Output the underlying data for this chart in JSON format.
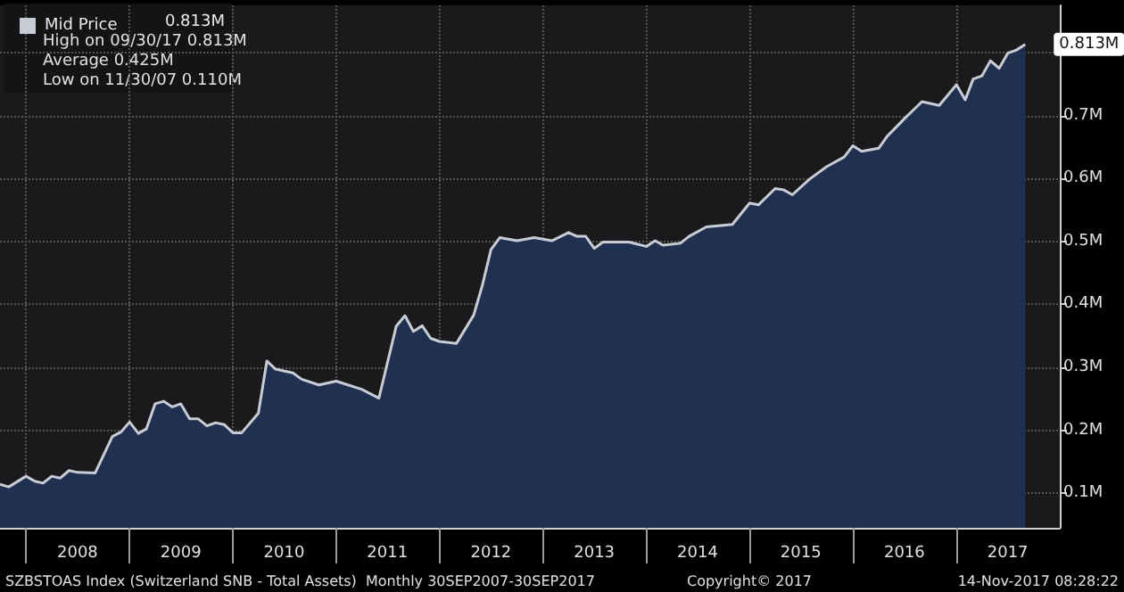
{
  "chart_data": {
    "type": "area",
    "legend": "top left",
    "grid": true,
    "marker": "none",
    "x": [
      "2007-10",
      "2007-11",
      "2008-01",
      "2008-02",
      "2008-03",
      "2008-04",
      "2008-05",
      "2008-06",
      "2008-07",
      "2008-09",
      "2008-11",
      "2008-12",
      "2009-01",
      "2009-02",
      "2009-03",
      "2009-04",
      "2009-05",
      "2009-06",
      "2009-07",
      "2009-08",
      "2009-09",
      "2009-10",
      "2009-11",
      "2009-12",
      "2010-01",
      "2010-02",
      "2010-04",
      "2010-05",
      "2010-06",
      "2010-08",
      "2010-09",
      "2010-11",
      "2011-01",
      "2011-04",
      "2011-06",
      "2011-08",
      "2011-09",
      "2011-10",
      "2011-11",
      "2011-12",
      "2012-01",
      "2012-03",
      "2012-05",
      "2012-06",
      "2012-07",
      "2012-08",
      "2012-10",
      "2012-12",
      "2013-02",
      "2013-04",
      "2013-05",
      "2013-06",
      "2013-07",
      "2013-08",
      "2013-11",
      "2014-01",
      "2014-02",
      "2014-03",
      "2014-05",
      "2014-06",
      "2014-08",
      "2014-11",
      "2015-01",
      "2015-02",
      "2015-04",
      "2015-05",
      "2015-06",
      "2015-08",
      "2015-10",
      "2015-12",
      "2016-01",
      "2016-02",
      "2016-04",
      "2016-05",
      "2016-07",
      "2016-09",
      "2016-11",
      "2017-01",
      "2017-02",
      "2017-03",
      "2017-04",
      "2017-05",
      "2017-06",
      "2017-07",
      "2017-08",
      "2017-09"
    ],
    "series": [
      {
        "name": "Mid Price",
        "color": "#c8ccd4",
        "values": [
          0.114,
          0.11,
          0.127,
          0.119,
          0.116,
          0.127,
          0.124,
          0.136,
          0.133,
          0.132,
          0.19,
          0.197,
          0.213,
          0.195,
          0.202,
          0.242,
          0.246,
          0.237,
          0.242,
          0.218,
          0.218,
          0.207,
          0.212,
          0.209,
          0.196,
          0.196,
          0.227,
          0.31,
          0.297,
          0.291,
          0.281,
          0.272,
          0.278,
          0.265,
          0.251,
          0.365,
          0.382,
          0.357,
          0.366,
          0.346,
          0.341,
          0.338,
          0.383,
          0.431,
          0.487,
          0.506,
          0.501,
          0.506,
          0.501,
          0.514,
          0.508,
          0.508,
          0.489,
          0.499,
          0.499,
          0.492,
          0.501,
          0.494,
          0.497,
          0.508,
          0.523,
          0.527,
          0.561,
          0.558,
          0.584,
          0.582,
          0.574,
          0.599,
          0.619,
          0.634,
          0.652,
          0.643,
          0.648,
          0.667,
          0.695,
          0.722,
          0.716,
          0.749,
          0.725,
          0.758,
          0.763,
          0.787,
          0.775,
          0.799,
          0.804,
          0.813
        ]
      }
    ],
    "xlim": [
      "2007-10",
      "2018-01"
    ],
    "xticks": [
      {
        "value": "2008-01",
        "label": null
      },
      {
        "value": "2008-07",
        "label": "2008"
      },
      {
        "value": "2009-01",
        "label": null
      },
      {
        "value": "2009-07",
        "label": "2009"
      },
      {
        "value": "2010-01",
        "label": null
      },
      {
        "value": "2010-07",
        "label": "2010"
      },
      {
        "value": "2011-01",
        "label": null
      },
      {
        "value": "2011-07",
        "label": "2011"
      },
      {
        "value": "2012-01",
        "label": null
      },
      {
        "value": "2012-07",
        "label": "2012"
      },
      {
        "value": "2013-01",
        "label": null
      },
      {
        "value": "2013-07",
        "label": "2013"
      },
      {
        "value": "2014-01",
        "label": null
      },
      {
        "value": "2014-07",
        "label": "2014"
      },
      {
        "value": "2015-01",
        "label": null
      },
      {
        "value": "2015-07",
        "label": "2015"
      },
      {
        "value": "2016-01",
        "label": null
      },
      {
        "value": "2016-07",
        "label": "2016"
      },
      {
        "value": "2017-01",
        "label": null
      },
      {
        "value": "2017-07",
        "label": "2017"
      }
    ],
    "ylim": [
      0.045,
      0.875
    ],
    "yticks": [
      {
        "value": 0.1,
        "label": "0.1M"
      },
      {
        "value": 0.2,
        "label": "0.2M"
      },
      {
        "value": 0.3,
        "label": "0.3M"
      },
      {
        "value": 0.4,
        "label": "0.4M"
      },
      {
        "value": 0.5,
        "label": "0.5M"
      },
      {
        "value": 0.6,
        "label": "0.6M"
      },
      {
        "value": 0.7,
        "label": "0.7M"
      },
      {
        "value": 0.8,
        "label": null
      }
    ],
    "annotations": [
      "0.813M",
      "High on 09/30/17 0.813M",
      "Average 0.425M",
      "Low on 11/30/07 0.110M",
      {
        "text": "0.813M",
        "x": "2017-09",
        "y": 0.813
      },
      "SZBSTOAS Index (Switzerland SNB - Total Assets)  Monthly 30SEP2007-30SEP2017",
      "Copyright© 2017",
      "14-Nov-2017 08:28:22"
    ]
  }
}
